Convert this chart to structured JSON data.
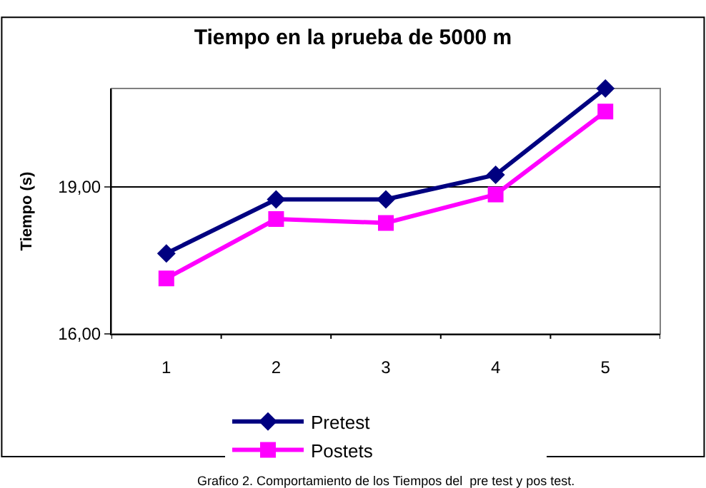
{
  "chart_data": {
    "type": "line",
    "title": "Tiempo en la prueba de 5000 m",
    "ylabel": "Tiempo (s)",
    "categories": [
      "1",
      "2",
      "3",
      "4",
      "5"
    ],
    "series": [
      {
        "name": "Pretest",
        "color": "#000080",
        "marker": "diamond",
        "values": [
          17.64,
          18.74,
          18.74,
          19.24,
          21.0
        ]
      },
      {
        "name": "Postets",
        "color": "#ff00ff",
        "marker": "square",
        "values": [
          17.13,
          18.34,
          18.26,
          18.84,
          20.53
        ]
      }
    ],
    "ylim": [
      16,
      21
    ],
    "yticks": [
      {
        "value": 16,
        "label": "16,00"
      },
      {
        "value": 19,
        "label": "19,00"
      }
    ],
    "grid": "y",
    "legend": "bottom",
    "annotations": [
      "Grafico 2. Comportamiento de los Tiempos del  pre test y pos test."
    ]
  }
}
